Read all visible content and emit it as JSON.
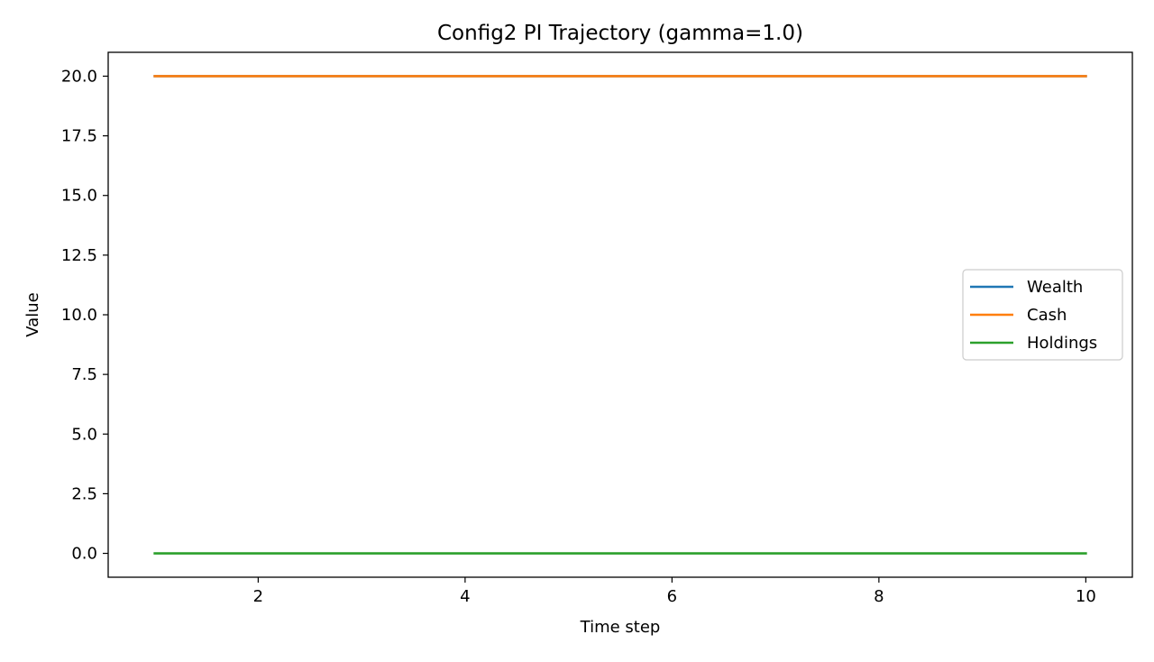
{
  "chart_data": {
    "type": "line",
    "title": "Config2  PI Trajectory (gamma=1.0)",
    "xlabel": "Time step",
    "ylabel": "Value",
    "xlim": [
      0.55,
      10.45
    ],
    "ylim": [
      -1.0,
      21.0
    ],
    "xticks": [
      2,
      4,
      6,
      8,
      10
    ],
    "yticks": [
      0.0,
      2.5,
      5.0,
      7.5,
      10.0,
      12.5,
      15.0,
      17.5,
      20.0
    ],
    "grid": false,
    "legend_position": "center-right",
    "x": [
      1,
      2,
      3,
      4,
      5,
      6,
      7,
      8,
      9,
      10
    ],
    "series": [
      {
        "name": "Wealth",
        "color": "#1f77b4",
        "values": [
          20,
          20,
          20,
          20,
          20,
          20,
          20,
          20,
          20,
          20
        ]
      },
      {
        "name": "Cash",
        "color": "#ff7f0e",
        "values": [
          20,
          20,
          20,
          20,
          20,
          20,
          20,
          20,
          20,
          20
        ]
      },
      {
        "name": "Holdings",
        "color": "#2ca02c",
        "values": [
          0,
          0,
          0,
          0,
          0,
          0,
          0,
          0,
          0,
          0
        ]
      }
    ]
  }
}
